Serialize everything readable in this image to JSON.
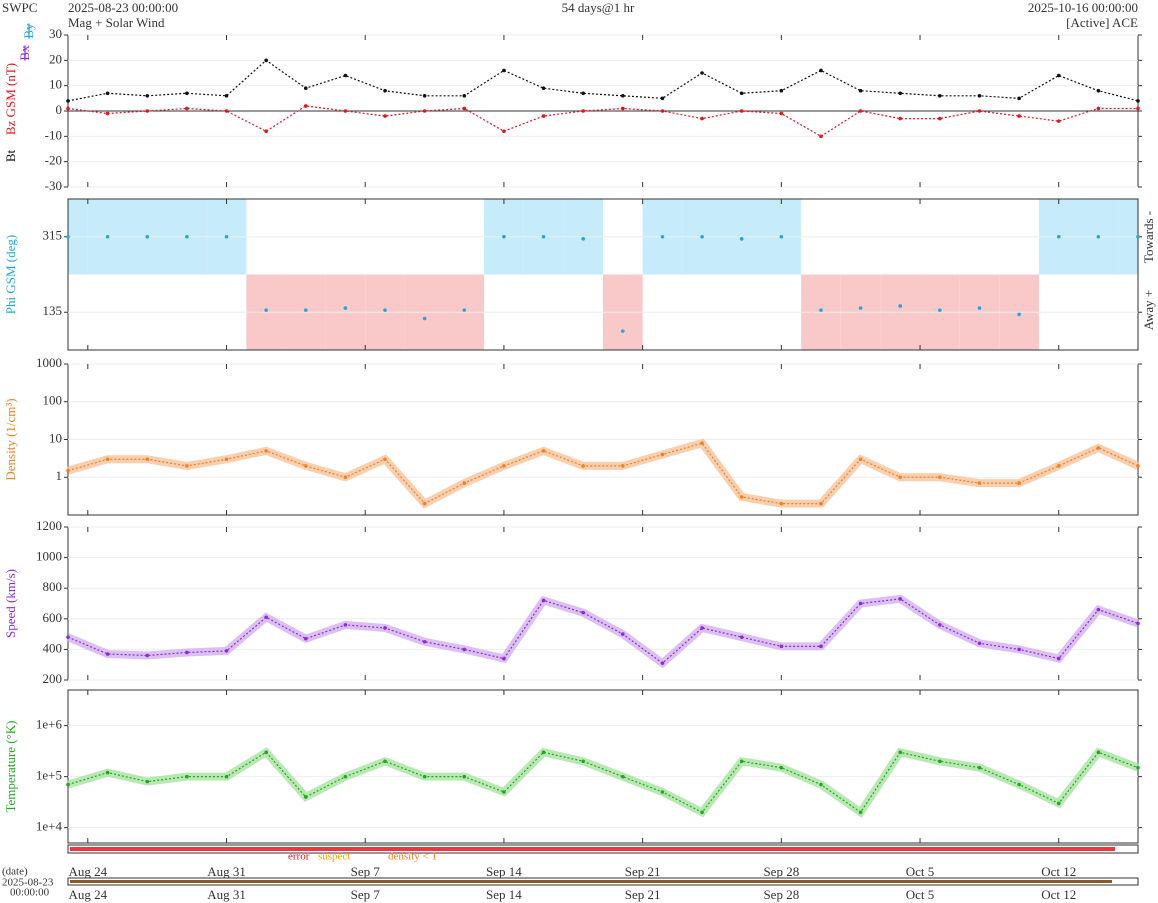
{
  "header": {
    "source": "SWPC",
    "start": "2025-08-23 00:00:00",
    "subtitle": "Mag + Solar Wind",
    "span": "54 days@1 hr",
    "end": "2025-10-16 00:00:00",
    "spacecraft": "[Active] ACE"
  },
  "flags": {
    "error": "error",
    "suspect": "suspect",
    "density": "density < 1"
  },
  "date_axis": {
    "label": "(date)",
    "start_date": "2025-08-23",
    "start_time": "00:00:00"
  },
  "chart_data": [
    {
      "type": "line",
      "ylabel": "Bz GSM (nT)",
      "ylabel_extra": [
        "Bt",
        "Bx",
        "By"
      ],
      "ylim": [
        -30,
        30
      ],
      "yticks": [
        -30,
        -20,
        -10,
        0,
        10,
        20,
        30
      ],
      "log": false,
      "x": [
        0,
        2,
        4,
        6,
        8,
        10,
        12,
        14,
        16,
        18,
        20,
        22,
        24,
        26,
        28,
        30,
        32,
        34,
        36,
        38,
        40,
        42,
        44,
        46,
        48,
        50,
        52,
        54
      ],
      "series": [
        {
          "name": "Bt",
          "color": "#111111",
          "values": [
            4,
            7,
            6,
            7,
            6,
            20,
            9,
            14,
            8,
            6,
            6,
            16,
            9,
            7,
            6,
            5,
            15,
            7,
            8,
            16,
            8,
            7,
            6,
            6,
            5,
            14,
            8,
            4
          ]
        },
        {
          "name": "Bz GSM",
          "color": "#e8141c",
          "values": [
            1,
            -1,
            0,
            1,
            0,
            -8,
            2,
            0,
            -2,
            0,
            1,
            -8,
            -2,
            0,
            1,
            0,
            -3,
            0,
            -1,
            -10,
            0,
            -3,
            -3,
            0,
            -2,
            -4,
            1,
            1
          ]
        }
      ]
    },
    {
      "type": "phi",
      "ylabel": "Phi GSM (deg)",
      "side_labels": [
        "Towards -",
        "Away +"
      ],
      "ylim": [
        45,
        405
      ],
      "yticks": [
        135,
        315
      ],
      "log": false,
      "x": [
        0,
        2,
        4,
        6,
        8,
        10,
        12,
        14,
        16,
        18,
        20,
        22,
        24,
        26,
        28,
        30,
        32,
        34,
        36,
        38,
        40,
        42,
        44,
        46,
        48,
        50,
        52,
        54
      ],
      "series": [
        {
          "name": "Phi GSM",
          "color": "#1ea8e0",
          "values": [
            315,
            315,
            315,
            315,
            315,
            140,
            140,
            145,
            140,
            120,
            140,
            315,
            315,
            310,
            90,
            315,
            315,
            310,
            315,
            140,
            145,
            150,
            140,
            145,
            130,
            315,
            315,
            315
          ]
        }
      ]
    },
    {
      "type": "line",
      "ylabel": "Density (1/cm³)",
      "ylim": [
        0.1,
        1000
      ],
      "yticks": [
        1,
        10,
        100,
        1000
      ],
      "log": true,
      "fill": "#f8c39a",
      "x": [
        0,
        2,
        4,
        6,
        8,
        10,
        12,
        14,
        16,
        18,
        20,
        22,
        24,
        26,
        28,
        30,
        32,
        34,
        36,
        38,
        40,
        42,
        44,
        46,
        48,
        50,
        52,
        54
      ],
      "series": [
        {
          "name": "Density",
          "color": "#f28023",
          "values": [
            1.5,
            3,
            3,
            2,
            3,
            5,
            2,
            1,
            3,
            0.2,
            0.7,
            2,
            5,
            2,
            2,
            4,
            8,
            0.3,
            0.2,
            0.2,
            3,
            1,
            1,
            0.7,
            0.7,
            2,
            6,
            2
          ]
        }
      ]
    },
    {
      "type": "line",
      "ylabel": "Speed (km/s)",
      "ylim": [
        200,
        1200
      ],
      "yticks": [
        200,
        400,
        600,
        800,
        1000,
        1200
      ],
      "log": false,
      "fill": "#d4b0f0",
      "x": [
        0,
        2,
        4,
        6,
        8,
        10,
        12,
        14,
        16,
        18,
        20,
        22,
        24,
        26,
        28,
        30,
        32,
        34,
        36,
        38,
        40,
        42,
        44,
        46,
        48,
        50,
        52,
        54
      ],
      "series": [
        {
          "name": "Speed",
          "color": "#8a2be2",
          "values": [
            480,
            370,
            360,
            380,
            390,
            610,
            470,
            560,
            540,
            450,
            400,
            340,
            720,
            640,
            500,
            310,
            540,
            480,
            420,
            420,
            700,
            730,
            560,
            440,
            400,
            340,
            660,
            570
          ]
        }
      ]
    },
    {
      "type": "line",
      "ylabel": "Temperature (°K)",
      "ylim": [
        5000,
        5000000
      ],
      "yticks": [
        {
          "value": 10000,
          "label": "1e+4"
        },
        {
          "value": 100000,
          "label": "1e+5"
        },
        {
          "value": 1000000,
          "label": "1e+6"
        }
      ],
      "log": true,
      "fill": "#a8e4a0",
      "x": [
        0,
        2,
        4,
        6,
        8,
        10,
        12,
        14,
        16,
        18,
        20,
        22,
        24,
        26,
        28,
        30,
        32,
        34,
        36,
        38,
        40,
        42,
        44,
        46,
        48,
        50,
        52,
        54
      ],
      "xlim": [
        0,
        54
      ],
      "xticks": [
        {
          "value": 1,
          "label": "Aug 24"
        },
        {
          "value": 8,
          "label": "Aug 31"
        },
        {
          "value": 15,
          "label": "Sep 7"
        },
        {
          "value": 22,
          "label": "Sep 14"
        },
        {
          "value": 29,
          "label": "Sep 21"
        },
        {
          "value": 36,
          "label": "Sep 28"
        },
        {
          "value": 43,
          "label": "Oct 5"
        },
        {
          "value": 50,
          "label": "Oct 12"
        }
      ],
      "series": [
        {
          "name": "Temperature",
          "color": "#22a822",
          "values": [
            70000,
            120000,
            80000,
            100000,
            100000,
            300000,
            40000,
            100000,
            200000,
            100000,
            100000,
            50000,
            300000,
            200000,
            100000,
            50000,
            20000,
            200000,
            150000,
            70000,
            20000,
            300000,
            200000,
            150000,
            70000,
            30000,
            300000,
            150000
          ]
        }
      ]
    }
  ]
}
